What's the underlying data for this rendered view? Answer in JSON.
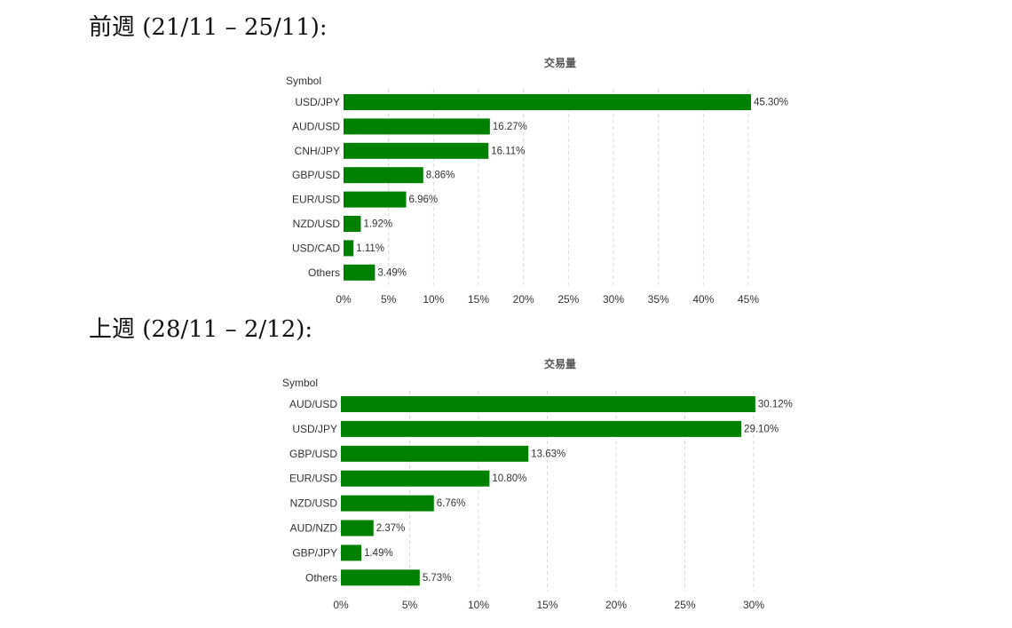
{
  "colors": {
    "bar": "#008000"
  },
  "sections": [
    {
      "heading": "前週 (21/11 – 25/11):"
    },
    {
      "heading": "上週 (28/11 – 2/12):"
    }
  ],
  "chart_data": [
    {
      "type": "bar",
      "orientation": "horizontal",
      "title": "交易量",
      "ylabel": "Symbol",
      "categories": [
        "USD/JPY",
        "AUD/USD",
        "CNH/JPY",
        "GBP/USD",
        "EUR/USD",
        "NZD/USD",
        "USD/CAD",
        "Others"
      ],
      "values": [
        45.3,
        16.27,
        16.11,
        8.86,
        6.96,
        1.92,
        1.11,
        3.49
      ],
      "value_labels": [
        "45.30%",
        "16.27%",
        "16.11%",
        "8.86%",
        "6.96%",
        "1.92%",
        "1.11%",
        "3.49%"
      ],
      "xlim": [
        0,
        45
      ],
      "xticks": [
        0,
        5,
        10,
        15,
        20,
        25,
        30,
        35,
        40,
        45
      ],
      "xtick_labels": [
        "0%",
        "5%",
        "10%",
        "15%",
        "20%",
        "25%",
        "30%",
        "35%",
        "40%",
        "45%"
      ],
      "grid": true
    },
    {
      "type": "bar",
      "orientation": "horizontal",
      "title": "交易量",
      "ylabel": "Symbol",
      "categories": [
        "AUD/USD",
        "USD/JPY",
        "GBP/USD",
        "EUR/USD",
        "NZD/USD",
        "AUD/NZD",
        "GBP/JPY",
        "Others"
      ],
      "values": [
        30.12,
        29.1,
        13.63,
        10.8,
        6.76,
        2.37,
        1.49,
        5.73
      ],
      "value_labels": [
        "30.12%",
        "29.10%",
        "13.63%",
        "10.80%",
        "6.76%",
        "2.37%",
        "1.49%",
        "5.73%"
      ],
      "xlim": [
        0,
        30
      ],
      "xticks": [
        0,
        5,
        10,
        15,
        20,
        25,
        30
      ],
      "xtick_labels": [
        "0%",
        "5%",
        "10%",
        "15%",
        "20%",
        "25%",
        "30%"
      ],
      "grid": true
    }
  ]
}
